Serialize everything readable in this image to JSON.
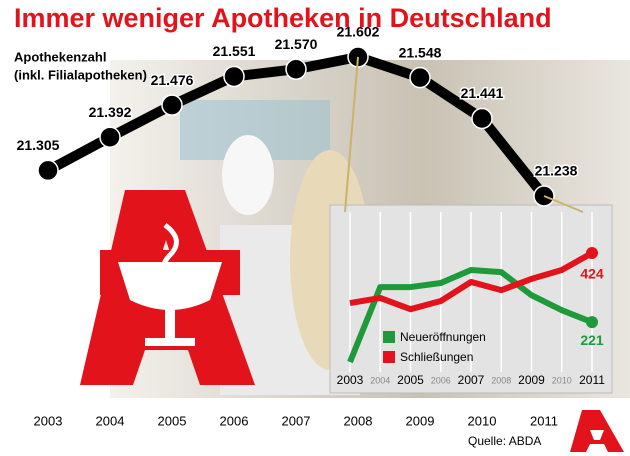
{
  "title": "Immer weniger Apotheken in Deutschland",
  "source": "Quelle: ABDA",
  "chart_data": [
    {
      "type": "line",
      "subtitle": "Apothekenzahl",
      "note": "(inkl. Filialapotheken)",
      "categories": [
        "2003",
        "2004",
        "2005",
        "2006",
        "2007",
        "2008",
        "2009",
        "2010",
        "2011"
      ],
      "values": [
        21305,
        21392,
        21476,
        21551,
        21570,
        21602,
        21548,
        21441,
        21238
      ],
      "value_labels": [
        "21.305",
        "21.392",
        "21.476",
        "21.551",
        "21.570",
        "21.602",
        "21.548",
        "21.441",
        "21.238"
      ],
      "color": "#000000"
    },
    {
      "type": "line",
      "categories": [
        "2003",
        "2004",
        "2005",
        "2006",
        "2007",
        "2008",
        "2009",
        "2010",
        "2011"
      ],
      "series": [
        {
          "name": "Neueröffnungen",
          "color": "#1f9a3a",
          "values": [
            104,
            324,
            324,
            336,
            374,
            368,
            300,
            256,
            221
          ]
        },
        {
          "name": "Schließungen",
          "color": "#e3131b",
          "values": [
            277,
            292,
            259,
            283,
            339,
            315,
            348,
            374,
            424
          ]
        }
      ]
    }
  ]
}
